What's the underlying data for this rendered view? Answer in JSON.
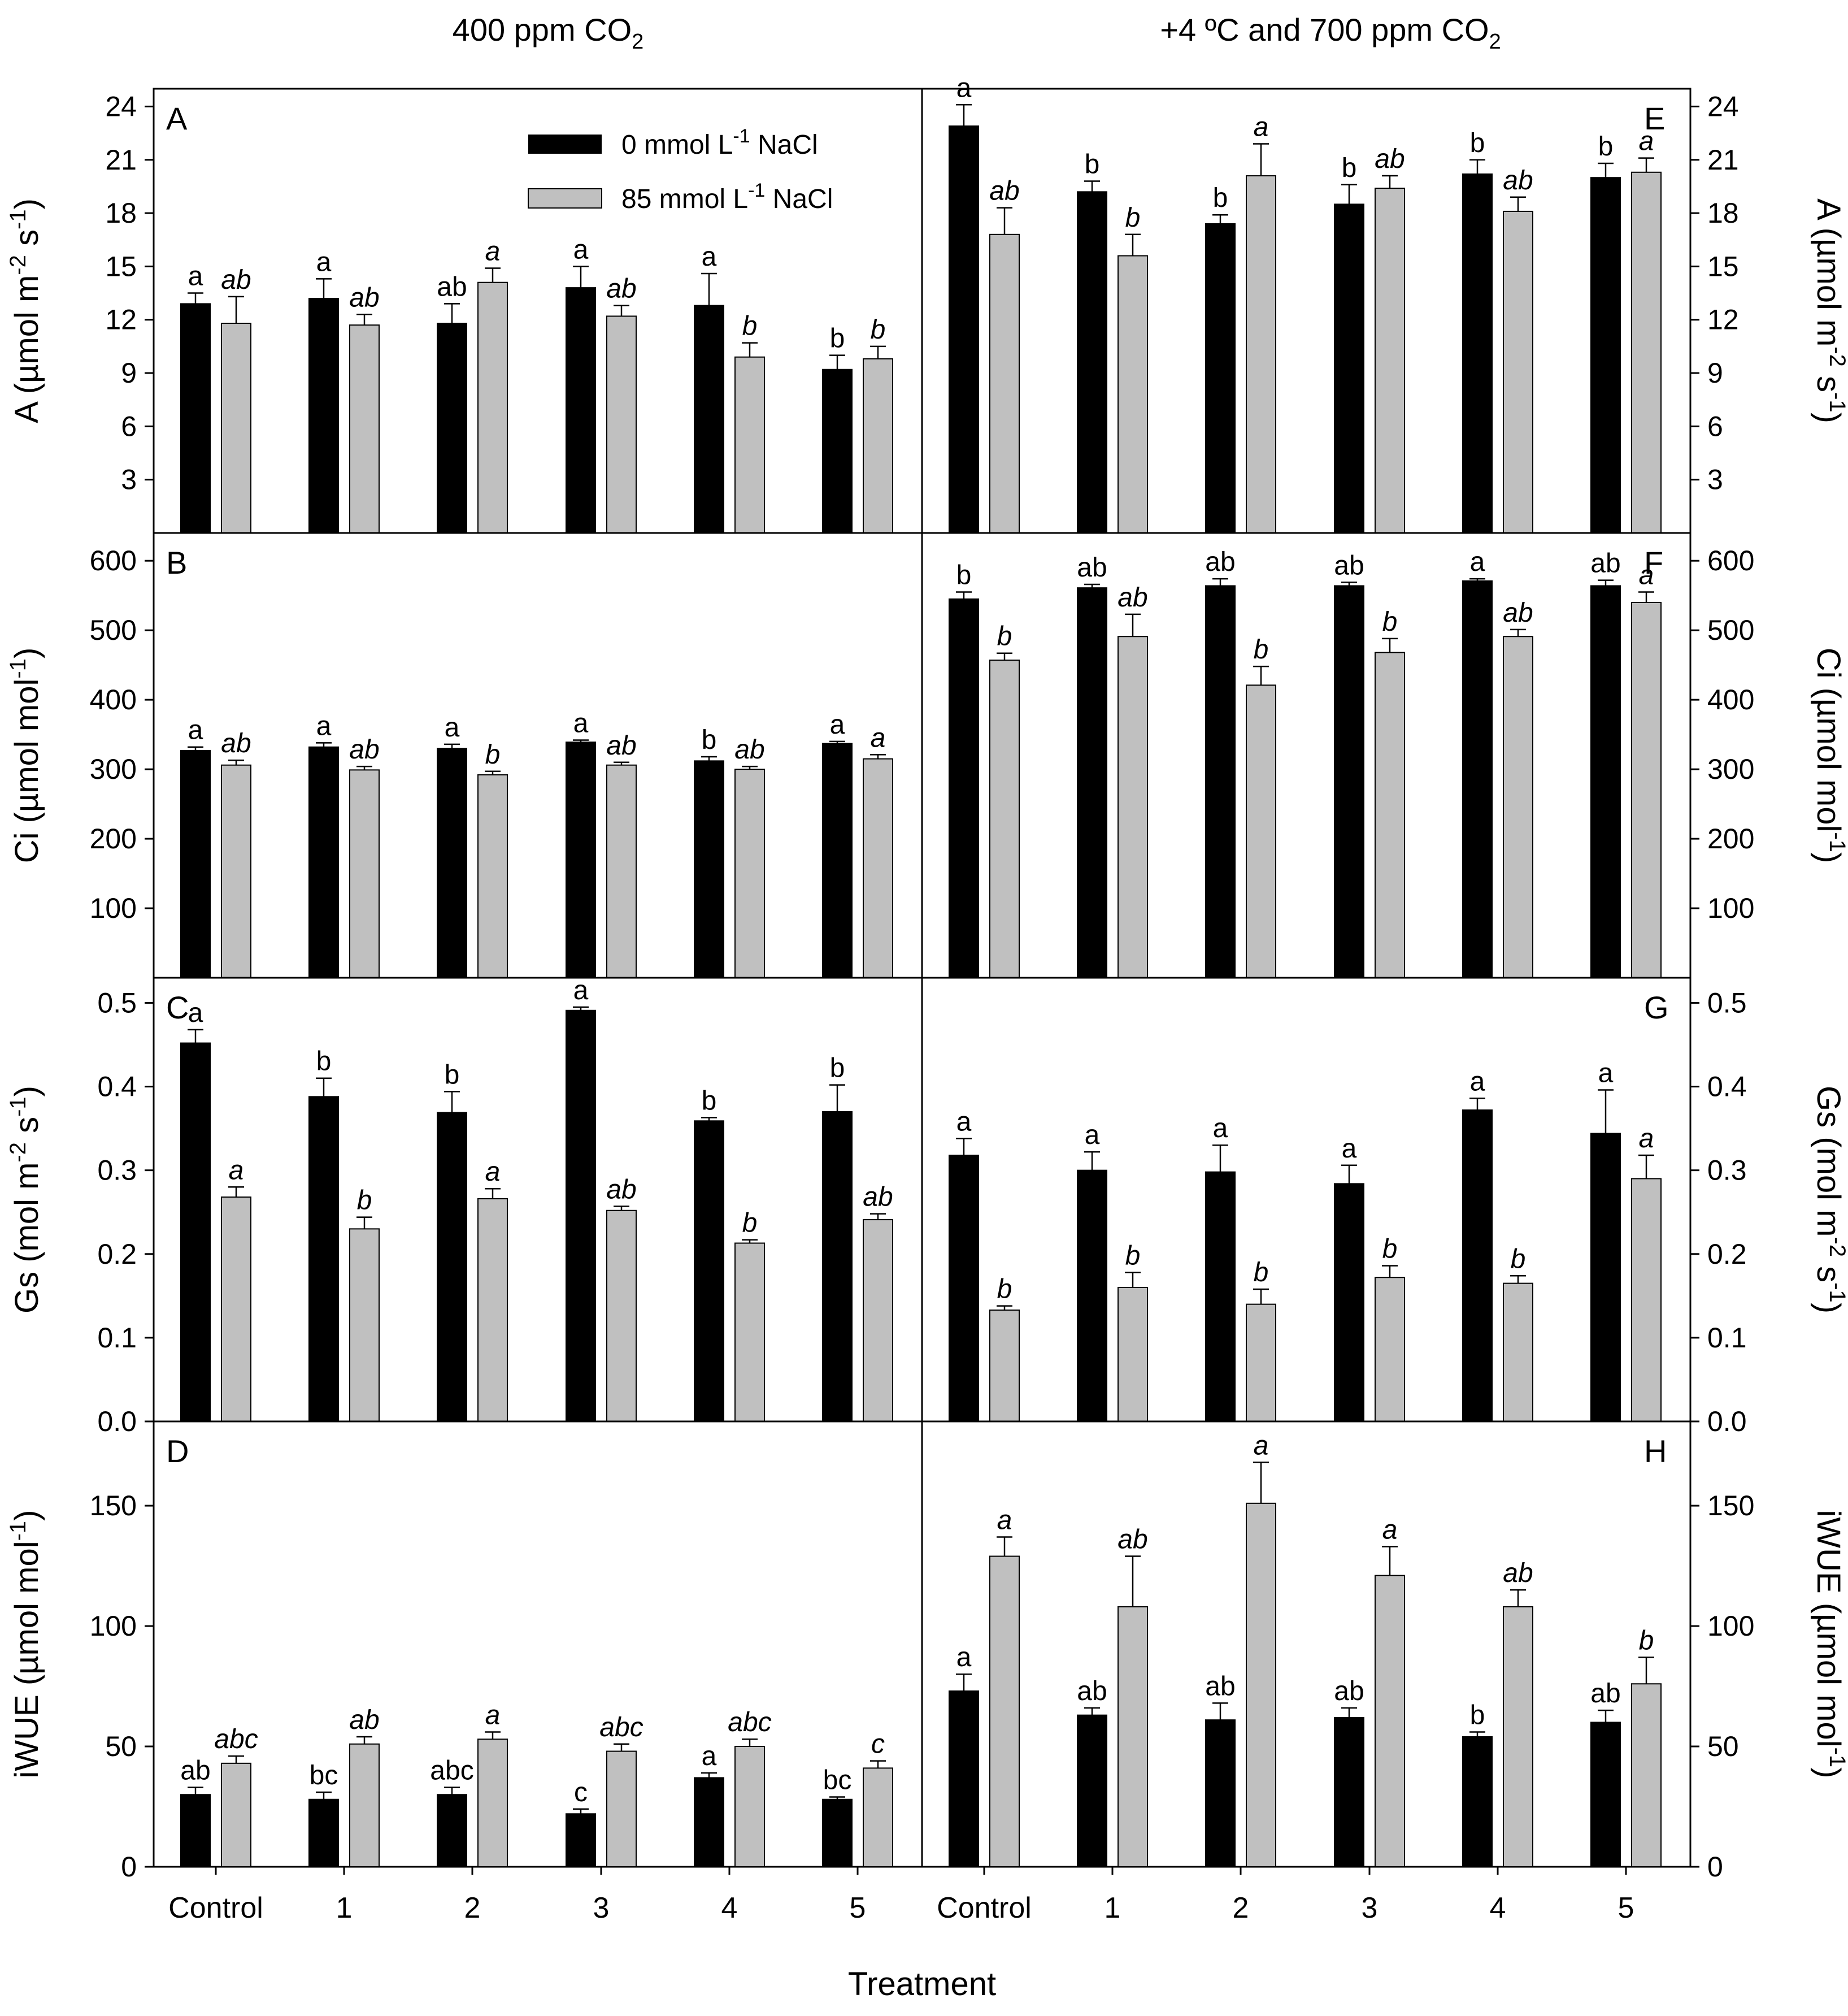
{
  "figure": {
    "column_titles": [
      "400 ppm CO",
      "+4 ºC and 700 ppm CO"
    ],
    "column_title_sub": "2",
    "xlabel": "Treatment",
    "categories": [
      "Control",
      "1",
      "2",
      "3",
      "4",
      "5"
    ],
    "legend": [
      {
        "prefix": "0 mmol L",
        "sup": "-1",
        "suffix": " NaCl",
        "color": "#000000"
      },
      {
        "prefix": "85 mmol L",
        "sup": "-1",
        "suffix": " NaCl",
        "color": "#c0c0c0"
      }
    ],
    "colors": {
      "nacl0": "#000000",
      "nacl85": "#c0c0c0",
      "axis": "#000000"
    }
  },
  "chart_data": [
    {
      "type": "bar",
      "panel": "A",
      "title": "A",
      "ylabel_html": "A (µmol m-2 s-1)",
      "ylabel_parts": [
        [
          "A (µmol m",
          ""
        ],
        [
          "-2",
          "sup"
        ],
        [
          " s",
          ""
        ],
        [
          "-1",
          "sup"
        ],
        [
          ")",
          ""
        ]
      ],
      "ylim": [
        0,
        25
      ],
      "yticks": [
        3,
        6,
        9,
        12,
        15,
        18,
        21,
        24
      ],
      "tick_decimals": 0,
      "side": "left",
      "categories": [
        "Control",
        "1",
        "2",
        "3",
        "4",
        "5"
      ],
      "series": [
        {
          "name": "0 mmol L-1 NaCl",
          "values": [
            12.9,
            13.2,
            11.8,
            13.8,
            12.8,
            9.2
          ],
          "errors": [
            0.6,
            1.1,
            1.1,
            1.2,
            1.8,
            0.8
          ],
          "letters": [
            "a",
            "a",
            "ab",
            "a",
            "a",
            "b"
          ]
        },
        {
          "name": "85 mmol L-1 NaCl",
          "values": [
            11.8,
            11.7,
            14.1,
            12.2,
            9.9,
            9.8
          ],
          "errors": [
            1.5,
            0.6,
            0.8,
            0.6,
            0.8,
            0.7
          ],
          "letters": [
            "ab",
            "ab",
            "a",
            "ab",
            "b",
            "b"
          ]
        }
      ]
    },
    {
      "type": "bar",
      "panel": "B",
      "title": "B",
      "ylabel_html": "Ci (µmol mol-1)",
      "ylabel_parts": [
        [
          "Ci (µmol mol",
          ""
        ],
        [
          "-1",
          "sup"
        ],
        [
          ")",
          ""
        ]
      ],
      "ylim": [
        0,
        640
      ],
      "yticks": [
        100,
        200,
        300,
        400,
        500,
        600
      ],
      "tick_decimals": 0,
      "side": "left",
      "categories": [
        "Control",
        "1",
        "2",
        "3",
        "4",
        "5"
      ],
      "series": [
        {
          "name": "0 mmol L-1 NaCl",
          "values": [
            327,
            332,
            330,
            339,
            312,
            337
          ],
          "errors": [
            5,
            6,
            6,
            3,
            6,
            3
          ],
          "letters": [
            "a",
            "a",
            "a",
            "a",
            "b",
            "a"
          ]
        },
        {
          "name": "85 mmol L-1 NaCl",
          "values": [
            306,
            299,
            292,
            306,
            300,
            315
          ],
          "errors": [
            7,
            5,
            5,
            4,
            4,
            6
          ],
          "letters": [
            "ab",
            "ab",
            "b",
            "ab",
            "ab",
            "a"
          ]
        }
      ]
    },
    {
      "type": "bar",
      "panel": "C",
      "title": "C",
      "ylabel_html": "Gs (mol m-2 s-1)",
      "ylabel_parts": [
        [
          "Gs (mol m",
          ""
        ],
        [
          "-2",
          "sup"
        ],
        [
          " s",
          ""
        ],
        [
          "-1",
          "sup"
        ],
        [
          ")",
          ""
        ]
      ],
      "ylim": [
        0,
        0.53
      ],
      "yticks": [
        0.0,
        0.1,
        0.2,
        0.3,
        0.4,
        0.5
      ],
      "tick_decimals": 1,
      "side": "left",
      "categories": [
        "Control",
        "1",
        "2",
        "3",
        "4",
        "5"
      ],
      "series": [
        {
          "name": "0 mmol L-1 NaCl",
          "values": [
            0.452,
            0.388,
            0.369,
            0.491,
            0.359,
            0.37
          ],
          "errors": [
            0.016,
            0.022,
            0.025,
            0.004,
            0.004,
            0.032
          ],
          "letters": [
            "a",
            "b",
            "b",
            "a",
            "b",
            "b"
          ]
        },
        {
          "name": "85 mmol L-1 NaCl",
          "values": [
            0.268,
            0.23,
            0.266,
            0.252,
            0.213,
            0.241
          ],
          "errors": [
            0.012,
            0.014,
            0.012,
            0.005,
            0.004,
            0.007
          ],
          "letters": [
            "a",
            "b",
            "a",
            "ab",
            "b",
            "ab"
          ]
        }
      ]
    },
    {
      "type": "bar",
      "panel": "D",
      "title": "D",
      "ylabel_html": "iWUE (µmol mol-1)",
      "ylabel_parts": [
        [
          "iWUE (µmol mol",
          ""
        ],
        [
          "-1",
          "sup"
        ],
        [
          ")",
          ""
        ]
      ],
      "ylim": [
        0,
        185
      ],
      "yticks": [
        0,
        50,
        100,
        150
      ],
      "tick_decimals": 0,
      "side": "left",
      "categories": [
        "Control",
        "1",
        "2",
        "3",
        "4",
        "5"
      ],
      "series": [
        {
          "name": "0 mmol L-1 NaCl",
          "values": [
            30,
            28,
            30,
            22,
            37,
            28
          ],
          "errors": [
            3,
            3,
            3,
            2,
            2,
            1
          ],
          "letters": [
            "ab",
            "bc",
            "abc",
            "c",
            "a",
            "bc"
          ]
        },
        {
          "name": "85 mmol L-1 NaCl",
          "values": [
            43,
            51,
            53,
            48,
            50,
            41
          ],
          "errors": [
            3,
            3,
            3,
            3,
            3,
            3
          ],
          "letters": [
            "abc",
            "ab",
            "a",
            "abc",
            "abc",
            "c"
          ]
        }
      ]
    },
    {
      "type": "bar",
      "panel": "E",
      "title": "E",
      "ylabel_html": "A (µmol m-2 s-1)",
      "ylabel_parts": [
        [
          "A (µmol m",
          ""
        ],
        [
          "-2",
          "sup"
        ],
        [
          " s",
          ""
        ],
        [
          "-1",
          "sup"
        ],
        [
          ")",
          ""
        ]
      ],
      "ylim": [
        0,
        25
      ],
      "yticks": [
        3,
        6,
        9,
        12,
        15,
        18,
        21,
        24
      ],
      "tick_decimals": 0,
      "side": "right",
      "categories": [
        "Control",
        "1",
        "2",
        "3",
        "4",
        "5"
      ],
      "series": [
        {
          "name": "0 mmol L-1 NaCl",
          "values": [
            22.9,
            19.2,
            17.4,
            18.5,
            20.2,
            20.0
          ],
          "errors": [
            1.2,
            0.6,
            0.5,
            1.1,
            0.8,
            0.8
          ],
          "letters": [
            "a",
            "b",
            "b",
            "b",
            "b",
            "b"
          ]
        },
        {
          "name": "85 mmol L-1 NaCl",
          "values": [
            16.8,
            15.6,
            20.1,
            19.4,
            18.1,
            20.3
          ],
          "errors": [
            1.5,
            1.2,
            1.8,
            0.7,
            0.8,
            0.8
          ],
          "letters": [
            "ab",
            "b",
            "a",
            "ab",
            "ab",
            "a"
          ]
        }
      ]
    },
    {
      "type": "bar",
      "panel": "F",
      "title": "F",
      "ylabel_html": "Ci (µmol mol-1)",
      "ylabel_parts": [
        [
          "Ci (µmol mol",
          ""
        ],
        [
          "-1",
          "sup"
        ],
        [
          ")",
          ""
        ]
      ],
      "ylim": [
        0,
        640
      ],
      "yticks": [
        100,
        200,
        300,
        400,
        500,
        600
      ],
      "tick_decimals": 0,
      "side": "right",
      "categories": [
        "Control",
        "1",
        "2",
        "3",
        "4",
        "5"
      ],
      "series": [
        {
          "name": "0 mmol L-1 NaCl",
          "values": [
            545,
            561,
            564,
            564,
            571,
            564
          ],
          "errors": [
            10,
            5,
            10,
            5,
            3,
            8
          ],
          "letters": [
            "b",
            "ab",
            "ab",
            "ab",
            "a",
            "ab"
          ]
        },
        {
          "name": "85 mmol L-1 NaCl",
          "values": [
            457,
            491,
            421,
            468,
            491,
            540
          ],
          "errors": [
            10,
            32,
            27,
            20,
            10,
            15
          ],
          "letters": [
            "b",
            "ab",
            "b",
            "b",
            "ab",
            "a"
          ]
        }
      ]
    },
    {
      "type": "bar",
      "panel": "G",
      "title": "G",
      "ylabel_html": "Gs (mol m-2 s-1)",
      "ylabel_parts": [
        [
          "Gs (mol m",
          ""
        ],
        [
          "-2",
          "sup"
        ],
        [
          " s",
          ""
        ],
        [
          "-1",
          "sup"
        ],
        [
          ")",
          ""
        ]
      ],
      "ylim": [
        0,
        0.53
      ],
      "yticks": [
        0.0,
        0.1,
        0.2,
        0.3,
        0.4,
        0.5
      ],
      "tick_decimals": 1,
      "side": "right",
      "categories": [
        "Control",
        "1",
        "2",
        "3",
        "4",
        "5"
      ],
      "series": [
        {
          "name": "0 mmol L-1 NaCl",
          "values": [
            0.318,
            0.3,
            0.298,
            0.284,
            0.372,
            0.344
          ],
          "errors": [
            0.02,
            0.022,
            0.032,
            0.022,
            0.014,
            0.052
          ],
          "letters": [
            "a",
            "a",
            "a",
            "a",
            "a",
            "a"
          ]
        },
        {
          "name": "85 mmol L-1 NaCl",
          "values": [
            0.133,
            0.16,
            0.14,
            0.172,
            0.165,
            0.29
          ],
          "errors": [
            0.005,
            0.018,
            0.018,
            0.014,
            0.009,
            0.028
          ],
          "letters": [
            "b",
            "b",
            "b",
            "b",
            "b",
            "a"
          ]
        }
      ]
    },
    {
      "type": "bar",
      "panel": "H",
      "title": "H",
      "ylabel_html": "iWUE (µmol mol-1)",
      "ylabel_parts": [
        [
          "iWUE (µmol mol",
          ""
        ],
        [
          "-1",
          "sup"
        ],
        [
          ")",
          ""
        ]
      ],
      "ylim": [
        0,
        185
      ],
      "yticks": [
        0,
        50,
        100,
        150
      ],
      "tick_decimals": 0,
      "side": "right",
      "categories": [
        "Control",
        "1",
        "2",
        "3",
        "4",
        "5"
      ],
      "series": [
        {
          "name": "0 mmol L-1 NaCl",
          "values": [
            73,
            63,
            61,
            62,
            54,
            60
          ],
          "errors": [
            7,
            3,
            7,
            4,
            2,
            5
          ],
          "letters": [
            "a",
            "ab",
            "ab",
            "ab",
            "b",
            "ab"
          ]
        },
        {
          "name": "85 mmol L-1 NaCl",
          "values": [
            129,
            108,
            151,
            121,
            108,
            76
          ],
          "errors": [
            8,
            21,
            17,
            12,
            7,
            11
          ],
          "letters": [
            "a",
            "ab",
            "a",
            "a",
            "ab",
            "b"
          ]
        }
      ]
    }
  ]
}
